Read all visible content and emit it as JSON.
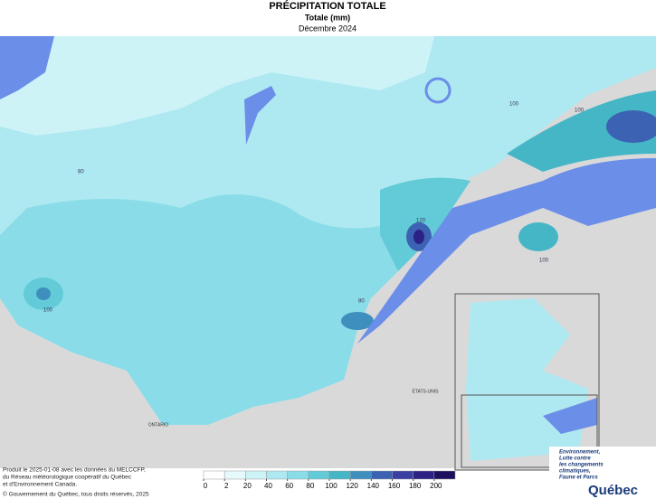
{
  "title": "PRÉCIPITATION TOTALE",
  "subtitle": "Totale (mm)",
  "period": "Décembre 2024",
  "places": [
    "ONTARIO",
    "ÉTATS-UNIS"
  ],
  "contour_labels": [
    100,
    80,
    100,
    100,
    120,
    80,
    100
  ],
  "notes": [
    "Produit le 2025-01-08 avec les données du MELCCFP,",
    "du Réseau météorologique coopératif du Québec",
    "et d'Environnement Canada."
  ],
  "copyright": "© Gouvernement du Québec, tous droits réservés, 2025",
  "logo": [
    "Environnement,",
    "Lutte contre",
    "les changements",
    "climatiques,",
    "Faune et Parcs"
  ],
  "logo_brand": "Québec",
  "legend": {
    "ticks": [
      0,
      2,
      20,
      40,
      60,
      80,
      100,
      120,
      140,
      160,
      180,
      200
    ],
    "colors": [
      "#ffffff",
      "#e6fafc",
      "#cdf3f7",
      "#aee9f1",
      "#8adde8",
      "#62cbd7",
      "#45b6c6",
      "#3f8fbe",
      "#3c62b3",
      "#3a3fa3",
      "#2c2286",
      "#1e0f5e"
    ]
  }
}
